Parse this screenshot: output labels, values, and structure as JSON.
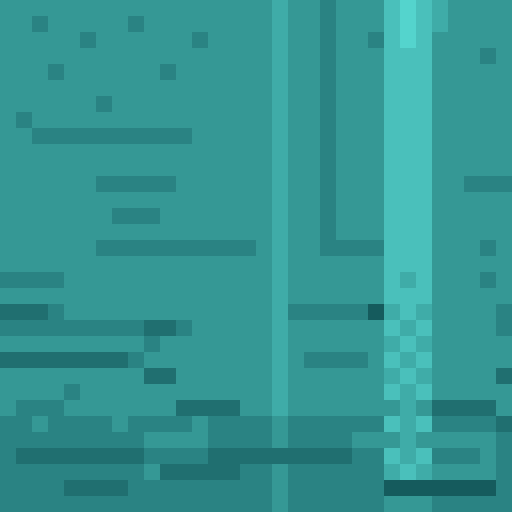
{
  "chart_data": {
    "type": "heatmap",
    "tick_labels": false,
    "zlim": [
      0,
      9
    ],
    "cells": [
      [
        5,
        5,
        5,
        5,
        5,
        5,
        5,
        5,
        5,
        5,
        5,
        5,
        5,
        5,
        5,
        5,
        5,
        6,
        5,
        5,
        4,
        5,
        5,
        5,
        7,
        8,
        7,
        6,
        5,
        5,
        5,
        5
      ],
      [
        5,
        5,
        4,
        5,
        5,
        5,
        5,
        5,
        4,
        5,
        5,
        5,
        5,
        5,
        5,
        5,
        5,
        6,
        5,
        5,
        4,
        5,
        5,
        5,
        7,
        8,
        7,
        6,
        5,
        5,
        5,
        5
      ],
      [
        5,
        5,
        5,
        5,
        5,
        4,
        5,
        5,
        5,
        5,
        5,
        5,
        4,
        5,
        5,
        5,
        5,
        6,
        5,
        5,
        4,
        5,
        5,
        4,
        7,
        8,
        7,
        5,
        5,
        5,
        5,
        5
      ],
      [
        5,
        5,
        5,
        5,
        5,
        5,
        5,
        5,
        5,
        5,
        5,
        5,
        5,
        5,
        5,
        5,
        5,
        6,
        5,
        5,
        4,
        5,
        5,
        5,
        7,
        7,
        7,
        5,
        5,
        5,
        4,
        5
      ],
      [
        5,
        5,
        5,
        4,
        5,
        5,
        5,
        5,
        5,
        5,
        4,
        5,
        5,
        5,
        5,
        5,
        5,
        6,
        5,
        5,
        4,
        5,
        5,
        5,
        7,
        7,
        7,
        5,
        5,
        5,
        5,
        5
      ],
      [
        5,
        5,
        5,
        5,
        5,
        5,
        5,
        5,
        5,
        5,
        5,
        5,
        5,
        5,
        5,
        5,
        5,
        6,
        5,
        5,
        4,
        5,
        5,
        5,
        7,
        7,
        7,
        5,
        5,
        5,
        5,
        5
      ],
      [
        5,
        5,
        5,
        5,
        5,
        5,
        4,
        5,
        5,
        5,
        5,
        5,
        5,
        5,
        5,
        5,
        5,
        6,
        5,
        5,
        4,
        5,
        5,
        5,
        7,
        7,
        7,
        5,
        5,
        5,
        5,
        5
      ],
      [
        5,
        4,
        5,
        5,
        5,
        5,
        5,
        5,
        5,
        5,
        5,
        5,
        5,
        5,
        5,
        5,
        5,
        6,
        5,
        5,
        4,
        5,
        5,
        5,
        7,
        7,
        7,
        5,
        5,
        5,
        5,
        5
      ],
      [
        5,
        5,
        4,
        4,
        4,
        4,
        4,
        4,
        4,
        4,
        4,
        4,
        5,
        5,
        5,
        5,
        5,
        6,
        5,
        5,
        4,
        5,
        5,
        5,
        7,
        7,
        7,
        5,
        5,
        5,
        5,
        5
      ],
      [
        5,
        5,
        5,
        5,
        5,
        5,
        5,
        5,
        5,
        5,
        5,
        5,
        5,
        5,
        5,
        5,
        5,
        6,
        5,
        5,
        4,
        5,
        5,
        5,
        7,
        7,
        7,
        5,
        5,
        5,
        5,
        5
      ],
      [
        5,
        5,
        5,
        5,
        5,
        5,
        5,
        5,
        5,
        5,
        5,
        5,
        5,
        5,
        5,
        5,
        5,
        6,
        5,
        5,
        4,
        5,
        5,
        5,
        7,
        7,
        7,
        5,
        5,
        5,
        5,
        5
      ],
      [
        5,
        5,
        5,
        5,
        5,
        5,
        4,
        4,
        4,
        4,
        4,
        5,
        5,
        5,
        5,
        5,
        5,
        6,
        5,
        5,
        4,
        5,
        5,
        5,
        7,
        7,
        7,
        5,
        5,
        4,
        4,
        4
      ],
      [
        5,
        5,
        5,
        5,
        5,
        5,
        5,
        5,
        5,
        5,
        5,
        5,
        5,
        5,
        5,
        5,
        5,
        6,
        5,
        5,
        4,
        5,
        5,
        5,
        7,
        7,
        7,
        5,
        5,
        5,
        5,
        5
      ],
      [
        5,
        5,
        5,
        5,
        5,
        5,
        5,
        4,
        4,
        4,
        5,
        5,
        5,
        5,
        5,
        5,
        5,
        6,
        5,
        5,
        4,
        5,
        5,
        5,
        7,
        7,
        7,
        5,
        5,
        5,
        5,
        5
      ],
      [
        5,
        5,
        5,
        5,
        5,
        5,
        5,
        5,
        5,
        5,
        5,
        5,
        5,
        5,
        5,
        5,
        5,
        6,
        5,
        5,
        4,
        5,
        5,
        5,
        7,
        7,
        7,
        5,
        5,
        5,
        5,
        5
      ],
      [
        5,
        5,
        5,
        5,
        5,
        5,
        4,
        4,
        4,
        4,
        4,
        4,
        4,
        4,
        4,
        4,
        5,
        6,
        5,
        5,
        4,
        4,
        4,
        4,
        7,
        7,
        7,
        5,
        5,
        5,
        4,
        5
      ],
      [
        5,
        5,
        5,
        5,
        5,
        5,
        5,
        5,
        5,
        5,
        5,
        5,
        5,
        5,
        5,
        5,
        5,
        6,
        5,
        5,
        5,
        5,
        5,
        5,
        7,
        7,
        7,
        5,
        5,
        5,
        5,
        5
      ],
      [
        4,
        4,
        4,
        4,
        5,
        5,
        5,
        5,
        5,
        5,
        5,
        5,
        5,
        5,
        5,
        5,
        5,
        6,
        5,
        5,
        5,
        5,
        5,
        5,
        7,
        6,
        7,
        5,
        5,
        5,
        4,
        5
      ],
      [
        5,
        5,
        5,
        5,
        5,
        5,
        5,
        5,
        5,
        5,
        5,
        5,
        5,
        5,
        5,
        5,
        5,
        6,
        5,
        5,
        5,
        5,
        5,
        5,
        7,
        7,
        7,
        5,
        5,
        5,
        5,
        5
      ],
      [
        3,
        3,
        3,
        4,
        5,
        5,
        5,
        5,
        5,
        5,
        5,
        5,
        5,
        5,
        5,
        5,
        5,
        6,
        4,
        4,
        4,
        4,
        4,
        2,
        6,
        7,
        6,
        5,
        5,
        5,
        5,
        4
      ],
      [
        4,
        4,
        4,
        4,
        4,
        4,
        4,
        4,
        4,
        3,
        3,
        4,
        5,
        5,
        5,
        5,
        5,
        6,
        5,
        5,
        5,
        5,
        5,
        5,
        7,
        6,
        7,
        5,
        5,
        5,
        5,
        4
      ],
      [
        5,
        5,
        5,
        5,
        5,
        5,
        5,
        5,
        5,
        4,
        5,
        5,
        5,
        5,
        5,
        5,
        5,
        6,
        5,
        5,
        5,
        5,
        5,
        5,
        6,
        7,
        6,
        5,
        5,
        5,
        5,
        5
      ],
      [
        3,
        3,
        3,
        3,
        3,
        3,
        3,
        3,
        4,
        5,
        5,
        5,
        5,
        5,
        5,
        5,
        5,
        6,
        5,
        4,
        4,
        4,
        4,
        5,
        7,
        6,
        7,
        5,
        5,
        5,
        5,
        5
      ],
      [
        5,
        5,
        5,
        5,
        5,
        5,
        5,
        5,
        5,
        3,
        3,
        5,
        5,
        5,
        5,
        5,
        5,
        6,
        5,
        5,
        5,
        5,
        5,
        5,
        6,
        7,
        6,
        5,
        5,
        5,
        5,
        3
      ],
      [
        5,
        5,
        5,
        5,
        4,
        5,
        5,
        5,
        5,
        5,
        5,
        5,
        5,
        5,
        5,
        5,
        5,
        6,
        5,
        5,
        5,
        5,
        5,
        5,
        7,
        6,
        7,
        5,
        5,
        5,
        5,
        5
      ],
      [
        5,
        4,
        4,
        4,
        5,
        5,
        5,
        5,
        5,
        5,
        5,
        3,
        3,
        3,
        3,
        5,
        5,
        6,
        5,
        5,
        5,
        5,
        5,
        5,
        5,
        6,
        5,
        3,
        3,
        3,
        3,
        5
      ],
      [
        4,
        4,
        5,
        4,
        4,
        4,
        4,
        5,
        4,
        4,
        4,
        4,
        5,
        4,
        4,
        4,
        4,
        5,
        4,
        4,
        4,
        4,
        4,
        4,
        7,
        6,
        7,
        4,
        4,
        4,
        4,
        3
      ],
      [
        4,
        4,
        4,
        4,
        4,
        4,
        4,
        4,
        4,
        5,
        5,
        5,
        5,
        4,
        4,
        4,
        4,
        5,
        4,
        4,
        4,
        4,
        5,
        5,
        5,
        6,
        5,
        5,
        5,
        5,
        5,
        4
      ],
      [
        4,
        3,
        3,
        3,
        3,
        3,
        3,
        3,
        3,
        4,
        4,
        4,
        4,
        3,
        3,
        3,
        3,
        3,
        3,
        3,
        3,
        3,
        4,
        4,
        7,
        6,
        7,
        4,
        4,
        4,
        5,
        4
      ],
      [
        4,
        4,
        4,
        4,
        4,
        4,
        4,
        4,
        4,
        5,
        3,
        3,
        3,
        3,
        3,
        4,
        4,
        5,
        4,
        4,
        4,
        4,
        4,
        4,
        6,
        7,
        6,
        5,
        5,
        5,
        5,
        4
      ],
      [
        4,
        4,
        4,
        4,
        3,
        3,
        3,
        3,
        4,
        4,
        4,
        4,
        4,
        4,
        4,
        4,
        4,
        5,
        4,
        4,
        4,
        4,
        4,
        4,
        2,
        2,
        2,
        2,
        2,
        2,
        2,
        4
      ],
      [
        4,
        4,
        4,
        4,
        4,
        4,
        4,
        4,
        4,
        4,
        4,
        4,
        4,
        4,
        4,
        4,
        4,
        5,
        4,
        4,
        4,
        4,
        4,
        4,
        5,
        5,
        5,
        4,
        4,
        4,
        4,
        4
      ]
    ]
  }
}
